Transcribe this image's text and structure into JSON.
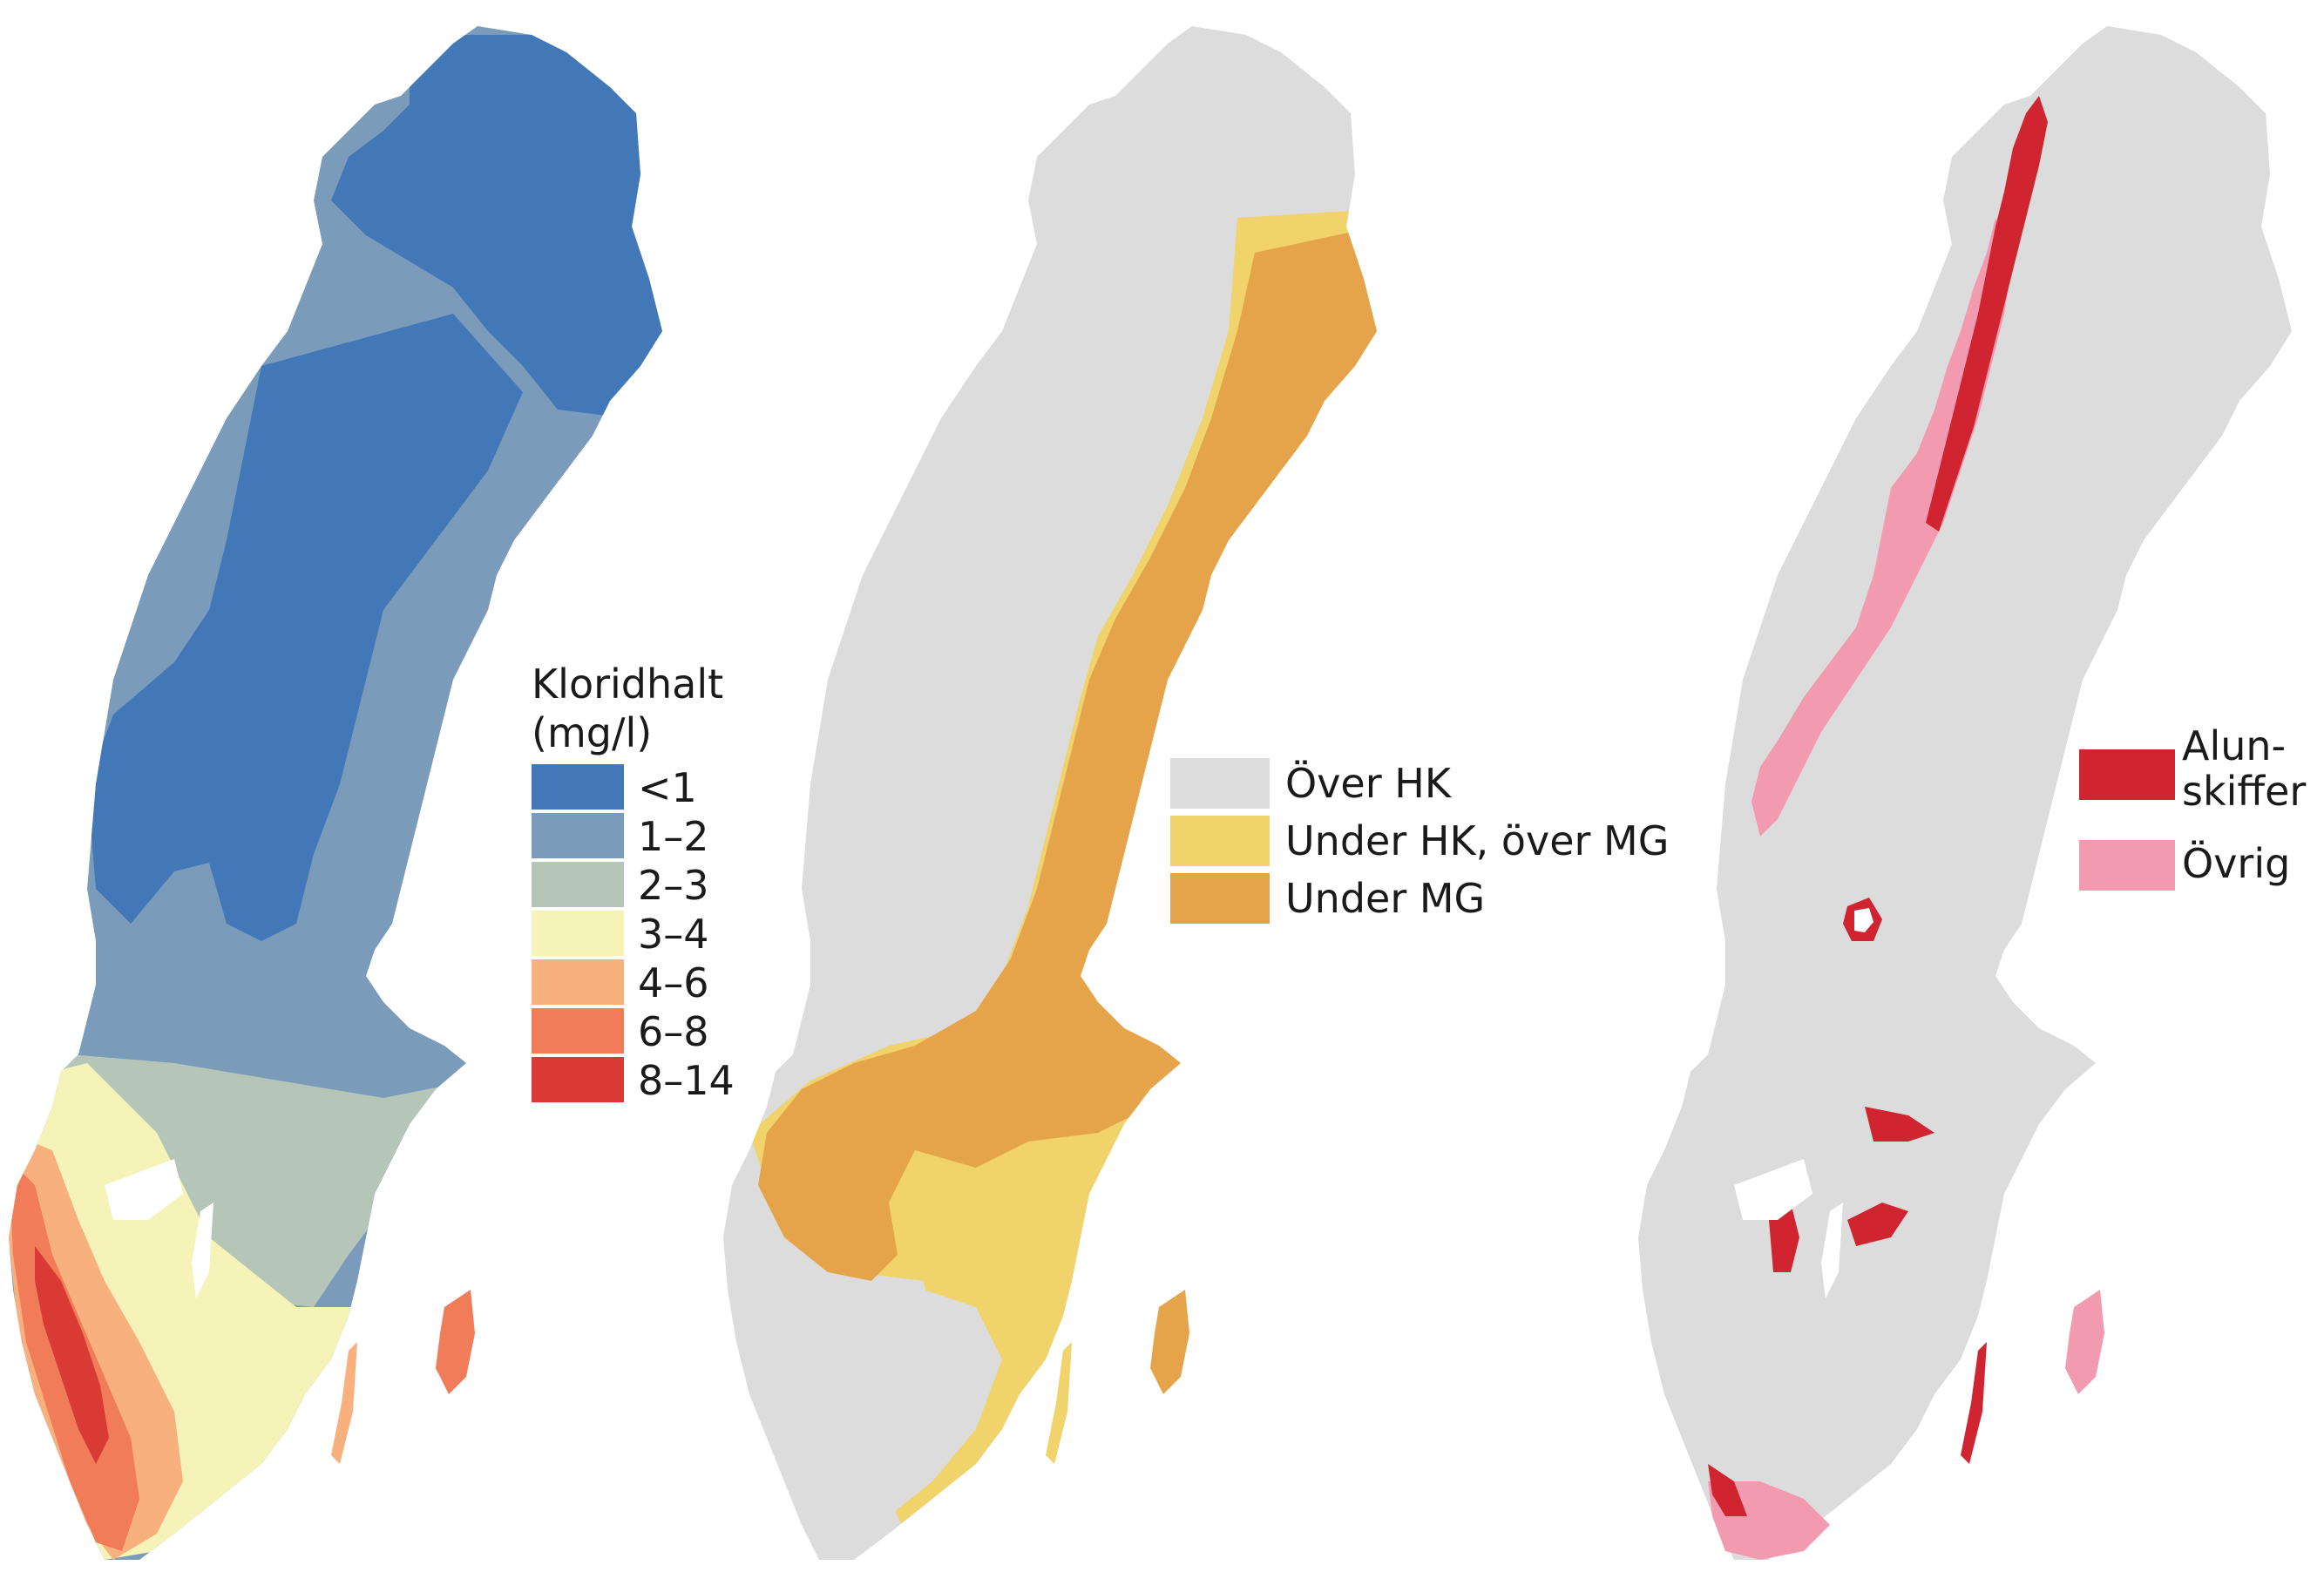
{
  "colors": {
    "background": "#ffffff",
    "land_grey": "#dcdcdd",
    "chloride": [
      "#4278b8",
      "#7b9bba",
      "#b5c6b8",
      "#f6f3b8",
      "#f9b07f",
      "#f07c5a",
      "#d93a33"
    ],
    "hk": [
      "#dcdcdd",
      "#f0d36a",
      "#e6a44a"
    ],
    "alum": [
      "#d02530",
      "#f29bb0"
    ]
  },
  "map1": {
    "legend_title_line1": "Kloridhalt",
    "legend_title_line2": "(mg/l)",
    "classes": [
      {
        "label": "<1",
        "color": "#4278b8"
      },
      {
        "label": "1–2",
        "color": "#7b9bba"
      },
      {
        "label": "2–3",
        "color": "#b5c6b8"
      },
      {
        "label": "3–4",
        "color": "#f6f3b8"
      },
      {
        "label": "4–6",
        "color": "#f9b07f"
      },
      {
        "label": "6–8",
        "color": "#f07c5a"
      },
      {
        "label": "8–14",
        "color": "#d93a33"
      }
    ]
  },
  "map2": {
    "classes": [
      {
        "label": "Över HK",
        "color": "#dcdcdd"
      },
      {
        "label": "Under HK, över MG",
        "color": "#f0d36a"
      },
      {
        "label": "Under MG",
        "color": "#e6a44a"
      }
    ]
  },
  "map3": {
    "classes": [
      {
        "label": "Alun- skiffer",
        "color": "#d02530"
      },
      {
        "label": "Övrig",
        "color": "#f29bb0"
      }
    ]
  }
}
